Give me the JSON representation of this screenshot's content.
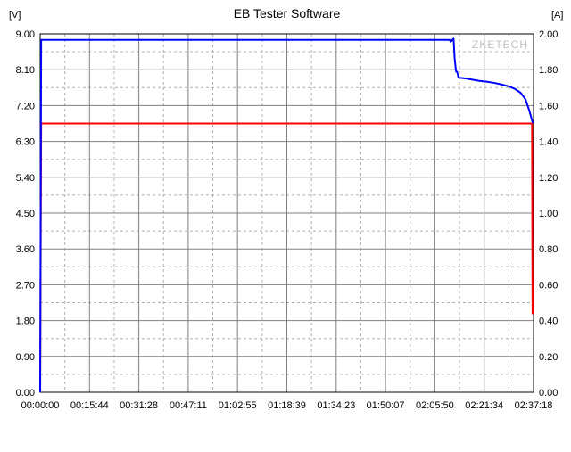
{
  "title": "EB Tester Software",
  "watermark": "ZKETECH",
  "left_axis": {
    "unit_label": "[V]",
    "min": 0.0,
    "max": 9.0,
    "tick_step": 0.9,
    "ticks": [
      "0.00",
      "0.90",
      "1.80",
      "2.70",
      "3.60",
      "4.50",
      "5.40",
      "6.30",
      "7.20",
      "8.10",
      "9.00"
    ],
    "label_fontsize": 11,
    "label_color": "#000000"
  },
  "right_axis": {
    "unit_label": "[A]",
    "min": 0.0,
    "max": 2.0,
    "tick_step": 0.2,
    "ticks": [
      "0.00",
      "0.20",
      "0.40",
      "0.60",
      "0.80",
      "1.00",
      "1.20",
      "1.40",
      "1.60",
      "1.80",
      "2.00"
    ],
    "label_fontsize": 11,
    "label_color": "#000000"
  },
  "x_axis": {
    "ticks": [
      "00:00:00",
      "00:15:44",
      "00:31:28",
      "00:47:11",
      "01:02:55",
      "01:18:39",
      "01:34:23",
      "01:50:07",
      "02:05:50",
      "02:21:34",
      "02:37:18"
    ],
    "label_fontsize": 11,
    "label_color": "#000000"
  },
  "plot": {
    "background_color": "#ffffff",
    "frame_color": "#000000",
    "major_grid_color": "#808080",
    "minor_grid_color": "#b0b0b0",
    "minor_dash": "3,3",
    "minor_subdiv": 2,
    "title_fontsize": 14,
    "watermark_color": "#bfbfbf",
    "watermark_fontsize": 12
  },
  "series": {
    "voltage": {
      "color": "#0000ff",
      "width": 2,
      "points_v": [
        [
          0.0,
          0.0
        ],
        [
          0.002,
          8.85
        ],
        [
          0.83,
          8.85
        ],
        [
          0.832,
          8.8
        ],
        [
          0.838,
          8.88
        ],
        [
          0.84,
          8.4
        ],
        [
          0.843,
          8.05
        ],
        [
          0.845,
          8.05
        ],
        [
          0.848,
          7.9
        ],
        [
          0.862,
          7.88
        ],
        [
          0.876,
          7.85
        ],
        [
          0.89,
          7.82
        ],
        [
          0.905,
          7.8
        ],
        [
          0.92,
          7.77
        ],
        [
          0.935,
          7.73
        ],
        [
          0.95,
          7.68
        ],
        [
          0.962,
          7.62
        ],
        [
          0.974,
          7.52
        ],
        [
          0.984,
          7.35
        ],
        [
          0.992,
          7.05
        ],
        [
          0.998,
          6.78
        ],
        [
          1.0,
          6.78
        ]
      ]
    },
    "current": {
      "color": "#ff0000",
      "width": 2,
      "points_a": [
        [
          0.0,
          0.0
        ],
        [
          0.002,
          1.5
        ],
        [
          0.997,
          1.5
        ],
        [
          0.998,
          0.44
        ],
        [
          1.0,
          0.44
        ]
      ]
    }
  }
}
